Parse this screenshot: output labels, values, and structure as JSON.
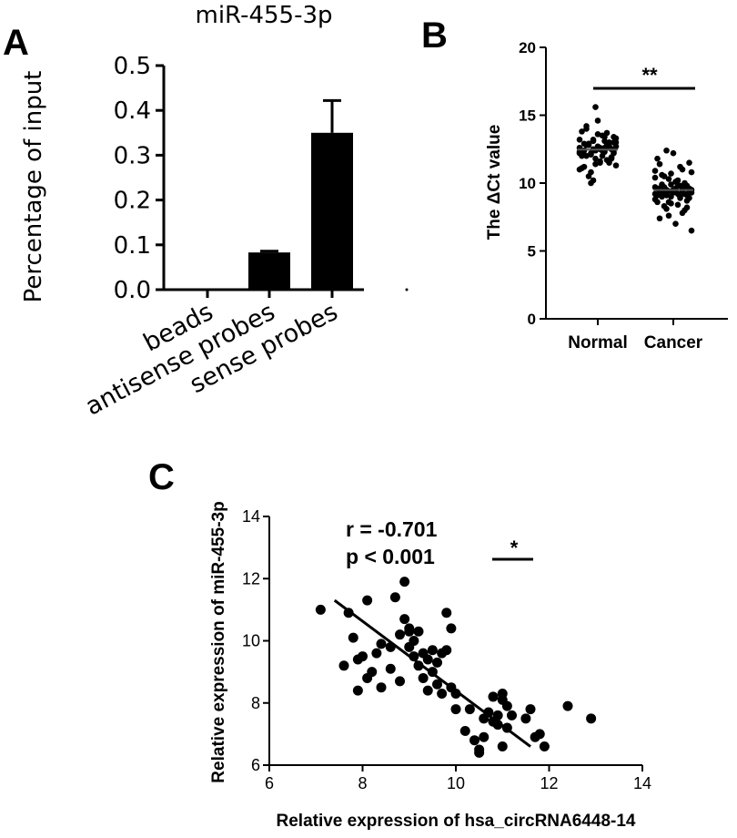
{
  "panels": {
    "a": "A",
    "b": "B",
    "c": "C"
  },
  "chart_data": [
    {
      "type": "bar",
      "title": "miR-455-3p",
      "ylabel": "Percentage of input",
      "xlabel": "",
      "categories": [
        "beads",
        "antisense probes",
        "sense probes"
      ],
      "values": [
        0.0,
        0.083,
        0.35
      ],
      "errors": [
        0.0,
        0.003,
        0.072
      ],
      "ylim": [
        0,
        0.5
      ],
      "yticks": [
        "0.0",
        "0.1",
        "0.2",
        "0.3",
        "0.4",
        "0.5"
      ],
      "bar_color": "#000000"
    },
    {
      "type": "scatter",
      "ylabel": "The ΔCt value",
      "xlabel": "",
      "categories": [
        "Normal",
        "Cancer"
      ],
      "ylim": [
        0,
        20
      ],
      "yticks": [
        "0",
        "5",
        "10",
        "15",
        "20"
      ],
      "significance": "**",
      "series": [
        {
          "values": [
            12.2,
            12.8,
            13.1,
            11.5,
            12.6,
            13.4,
            12.0,
            12.9,
            11.8,
            12.4,
            13.0,
            12.7,
            11.2,
            12.1,
            13.6,
            12.3,
            12.5,
            11.0,
            12.8,
            13.2,
            12.6,
            11.7,
            12.2,
            13.8,
            12.9,
            11.4,
            12.0,
            12.7,
            13.3,
            12.4,
            10.8,
            12.6,
            13.1,
            11.9,
            12.3,
            14.2,
            12.5,
            11.6,
            12.8,
            13.0,
            12.1,
            10.5,
            12.4,
            13.5,
            12.7,
            11.3,
            12.9,
            12.2,
            14.6,
            12.6,
            11.8,
            13.2,
            12.0,
            10.2,
            12.5,
            13.7,
            12.3,
            11.1,
            12.8,
            15.6,
            12.4,
            11.5,
            13.0,
            12.1,
            10.0,
            12.7,
            13.4,
            11.9,
            12.6,
            14.0
          ]
        },
        {
          "values": [
            9.2,
            9.8,
            8.6,
            10.1,
            9.4,
            8.9,
            9.6,
            10.5,
            9.0,
            8.4,
            9.7,
            10.8,
            9.3,
            8.1,
            9.5,
            11.2,
            9.1,
            8.8,
            9.9,
            10.3,
            9.4,
            7.8,
            9.6,
            11.8,
            9.2,
            8.5,
            9.8,
            10.0,
            9.3,
            7.4,
            9.5,
            12.2,
            9.0,
            8.7,
            9.7,
            10.6,
            9.4,
            7.0,
            9.6,
            11.5,
            9.1,
            8.3,
            9.9,
            10.2,
            9.2,
            6.5,
            9.5,
            12.4,
            9.3,
            8.9,
            9.8,
            10.4,
            9.0,
            7.6,
            9.6,
            11.0,
            9.4,
            8.6,
            9.7,
            10.7,
            9.2,
            8.0,
            9.5,
            11.4,
            9.1,
            9.3,
            9.8,
            8.2,
            10.9,
            9.4
          ]
        }
      ]
    },
    {
      "type": "scatter",
      "xlabel": "Relative expression of hsa_circRNA6448-14",
      "ylabel": "Relative expression of miR-455-3p",
      "xlim": [
        6,
        14
      ],
      "ylim": [
        6,
        14
      ],
      "xticks": [
        "6",
        "8",
        "10",
        "12",
        "14"
      ],
      "yticks": [
        "6",
        "8",
        "10",
        "12",
        "14"
      ],
      "annotations": [
        "r = -0.701",
        "p < 0.001"
      ],
      "significance": "*",
      "fit": [
        [
          7.4,
          11.3
        ],
        [
          11.6,
          6.6
        ]
      ],
      "x": [
        7.1,
        7.6,
        7.7,
        7.9,
        8.0,
        8.1,
        8.1,
        8.2,
        7.8,
        8.3,
        7.9,
        8.4,
        8.6,
        8.7,
        8.8,
        8.8,
        8.9,
        8.9,
        9.0,
        9.0,
        9.1,
        9.1,
        9.2,
        9.2,
        9.3,
        9.3,
        9.4,
        9.4,
        9.5,
        9.5,
        9.6,
        9.6,
        9.7,
        9.7,
        9.8,
        9.8,
        9.9,
        9.9,
        10.0,
        10.0,
        10.2,
        10.3,
        10.4,
        10.5,
        10.6,
        10.6,
        10.7,
        10.8,
        10.8,
        10.9,
        10.9,
        11.0,
        11.0,
        11.1,
        11.1,
        11.2,
        11.5,
        11.6,
        11.7,
        11.8,
        11.9,
        12.4,
        12.9,
        9.0,
        8.6,
        8.4,
        10.5,
        11.0
      ],
      "y": [
        11.0,
        9.2,
        10.9,
        8.4,
        9.5,
        11.3,
        8.8,
        9.0,
        10.1,
        9.6,
        9.4,
        8.5,
        9.1,
        11.4,
        10.2,
        8.7,
        11.9,
        10.7,
        10.3,
        9.8,
        9.5,
        10.0,
        9.2,
        10.3,
        8.8,
        9.6,
        9.4,
        8.4,
        9.7,
        9.0,
        9.3,
        8.6,
        9.6,
        8.3,
        10.9,
        9.7,
        8.5,
        10.4,
        8.3,
        7.8,
        7.1,
        7.8,
        6.8,
        6.5,
        7.5,
        6.9,
        7.7,
        7.4,
        8.2,
        7.3,
        7.6,
        8.3,
        6.6,
        7.9,
        7.2,
        7.6,
        7.5,
        7.8,
        6.9,
        7.0,
        6.6,
        7.9,
        7.5,
        10.4,
        9.8,
        9.9,
        6.4,
        8.1
      ],
      "point_color": "#000000"
    }
  ]
}
